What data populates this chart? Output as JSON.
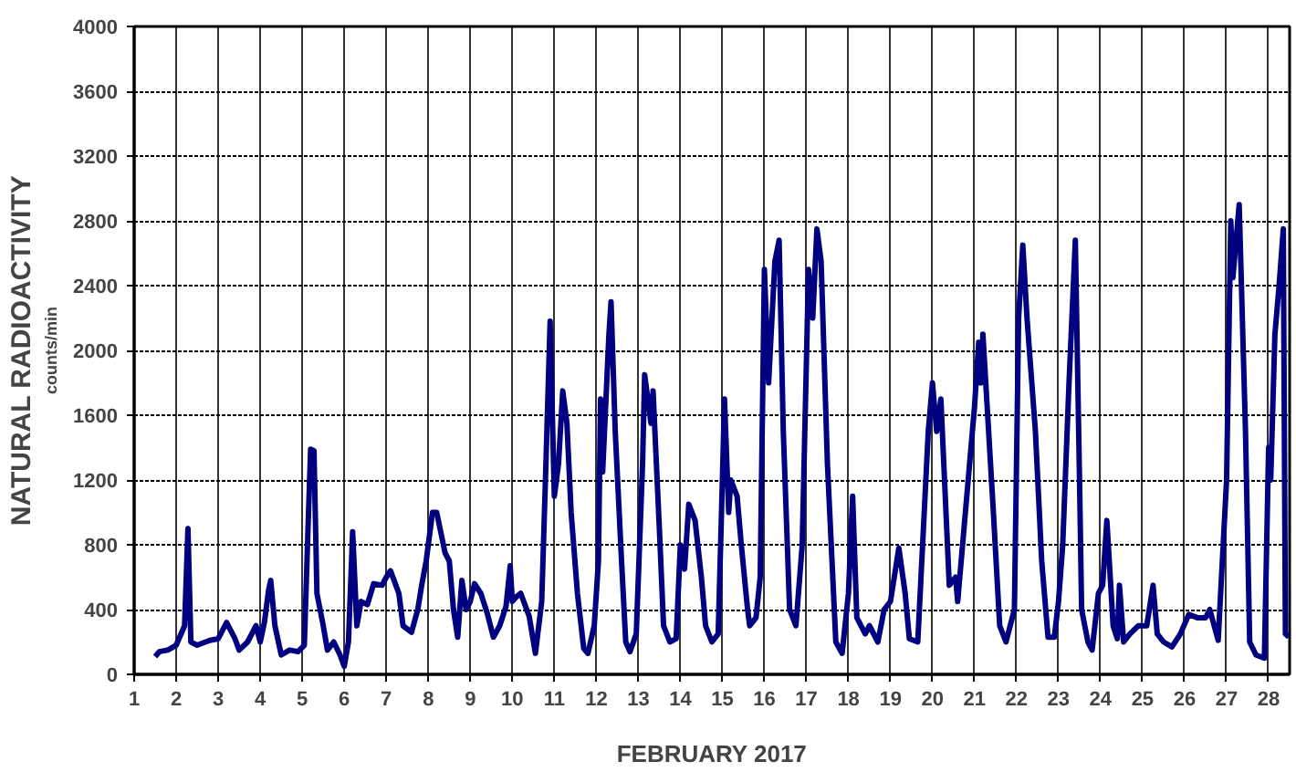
{
  "chart_data": {
    "type": "line",
    "xlabel": "FEBRUARY 2017",
    "ylabel": "NATURAL RADIOACTIVITY",
    "annotations": [
      "counts/min"
    ],
    "xlim": [
      1,
      28.5
    ],
    "xticks": [
      1,
      2,
      3,
      4,
      5,
      6,
      7,
      8,
      9,
      10,
      11,
      12,
      13,
      14,
      15,
      16,
      17,
      18,
      19,
      20,
      21,
      22,
      23,
      24,
      25,
      26,
      27,
      28
    ],
    "ylim": [
      0,
      4000
    ],
    "yticks": [
      0,
      400,
      800,
      1200,
      1600,
      2000,
      2400,
      2800,
      3200,
      3600,
      4000
    ],
    "grid": true,
    "marker": "none",
    "line_style": "solid",
    "series": [
      {
        "color": "#000080",
        "x": [
          1.5,
          1.6,
          1.8,
          2.0,
          2.2,
          2.28,
          2.35,
          2.5,
          2.8,
          3.0,
          3.2,
          3.4,
          3.5,
          3.7,
          3.9,
          4.0,
          4.1,
          4.2,
          4.25,
          4.35,
          4.5,
          4.7,
          4.9,
          5.05,
          5.15,
          5.2,
          5.28,
          5.35,
          5.5,
          5.6,
          5.75,
          5.9,
          6.0,
          6.1,
          6.2,
          6.3,
          6.4,
          6.55,
          6.7,
          6.9,
          7.0,
          7.1,
          7.3,
          7.4,
          7.6,
          7.75,
          7.85,
          7.95,
          8.1,
          8.2,
          8.4,
          8.5,
          8.6,
          8.7,
          8.8,
          8.9,
          9.0,
          9.1,
          9.25,
          9.4,
          9.55,
          9.7,
          9.85,
          9.95,
          10.0,
          10.1,
          10.2,
          10.4,
          10.55,
          10.7,
          10.8,
          10.9,
          11.0,
          11.1,
          11.2,
          11.3,
          11.4,
          11.55,
          11.7,
          11.8,
          11.95,
          12.05,
          12.1,
          12.15,
          12.3,
          12.35,
          12.45,
          12.6,
          12.7,
          12.8,
          12.95,
          13.1,
          13.15,
          13.3,
          13.35,
          13.5,
          13.6,
          13.75,
          13.9,
          14.0,
          14.1,
          14.2,
          14.35,
          14.5,
          14.6,
          14.75,
          14.9,
          15.0,
          15.05,
          15.15,
          15.2,
          15.35,
          15.45,
          15.6,
          15.65,
          15.8,
          15.9,
          16.0,
          16.1,
          16.25,
          16.35,
          16.45,
          16.6,
          16.75,
          16.9,
          17.05,
          17.15,
          17.25,
          17.35,
          17.5,
          17.7,
          17.85,
          18.0,
          18.1,
          18.2,
          18.4,
          18.5,
          18.7,
          18.85,
          19.0,
          19.2,
          19.35,
          19.45,
          19.65,
          19.9,
          20.0,
          20.1,
          20.2,
          20.4,
          20.55,
          20.6,
          20.85,
          21.0,
          21.1,
          21.15,
          21.2,
          21.45,
          21.6,
          21.75,
          21.95,
          22.05,
          22.15,
          22.25,
          22.45,
          22.6,
          22.75,
          22.9,
          23.0,
          23.1,
          23.25,
          23.4,
          23.5,
          23.55,
          23.7,
          23.8,
          23.95,
          24.05,
          24.15,
          24.3,
          24.4,
          24.45,
          24.55,
          24.7,
          24.9,
          25.1,
          25.25,
          25.35,
          25.5,
          25.7,
          25.9,
          26.1,
          26.3,
          26.5,
          26.6,
          26.8,
          27.0,
          27.1,
          27.15,
          27.3,
          27.45,
          27.55,
          27.7,
          27.9,
          28.0,
          28.05,
          28.15,
          28.25,
          28.35,
          28.4,
          28.48
        ],
        "values": [
          110,
          140,
          150,
          180,
          300,
          900,
          200,
          180,
          210,
          220,
          320,
          220,
          150,
          200,
          300,
          200,
          320,
          520,
          580,
          300,
          120,
          150,
          140,
          180,
          1000,
          1390,
          1380,
          500,
          300,
          150,
          200,
          120,
          50,
          200,
          880,
          300,
          450,
          430,
          560,
          550,
          600,
          640,
          500,
          300,
          260,
          400,
          560,
          700,
          1000,
          1000,
          750,
          700,
          400,
          230,
          580,
          400,
          450,
          560,
          500,
          380,
          230,
          300,
          420,
          670,
          450,
          480,
          500,
          360,
          130,
          450,
          1300,
          2180,
          1100,
          1300,
          1750,
          1550,
          1000,
          500,
          160,
          130,
          300,
          700,
          1700,
          1250,
          2100,
          2300,
          1500,
          700,
          200,
          140,
          250,
          1300,
          1850,
          1550,
          1750,
          900,
          300,
          200,
          220,
          800,
          650,
          1050,
          950,
          600,
          300,
          200,
          250,
          1200,
          1700,
          1000,
          1200,
          1100,
          800,
          400,
          300,
          350,
          600,
          2500,
          1800,
          2550,
          2680,
          1500,
          400,
          300,
          800,
          2500,
          2200,
          2750,
          2550,
          1300,
          200,
          130,
          500,
          1100,
          350,
          250,
          300,
          200,
          400,
          450,
          780,
          500,
          220,
          200,
          1500,
          1800,
          1500,
          1700,
          550,
          600,
          450,
          1200,
          1650,
          2050,
          1800,
          2100,
          1000,
          300,
          200,
          400,
          2200,
          2650,
          2200,
          1500,
          700,
          230,
          230,
          450,
          800,
          1800,
          2680,
          1200,
          400,
          200,
          150,
          500,
          550,
          950,
          300,
          220,
          550,
          200,
          250,
          300,
          300,
          550,
          250,
          200,
          170,
          250,
          370,
          350,
          350,
          400,
          210,
          1200,
          2800,
          2450,
          2900,
          1500,
          200,
          120,
          100,
          1400,
          1200,
          2100,
          2400,
          2750,
          250,
          230
        ]
      }
    ]
  }
}
